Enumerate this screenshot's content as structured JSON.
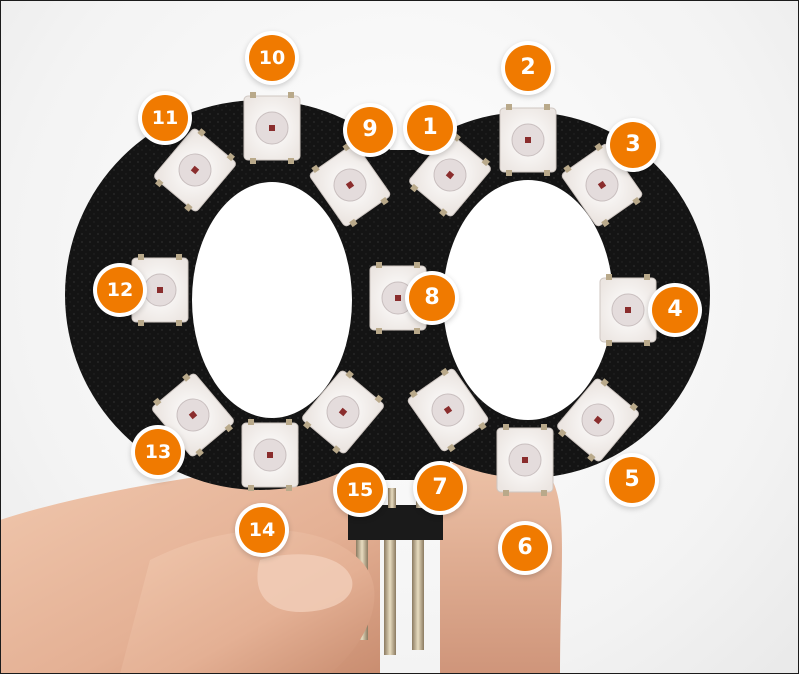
{
  "scene": {
    "subject": "pcb-board",
    "colors": {
      "board": "#141414",
      "led": "#f5f2ef",
      "badge": "#f07a00",
      "badge_text": "#ffffff",
      "skin": "#e6b79a"
    }
  },
  "labels": [
    "1",
    "2",
    "3",
    "4",
    "5",
    "6",
    "7",
    "8",
    "9",
    "10",
    "11",
    "12",
    "13",
    "14",
    "15"
  ]
}
